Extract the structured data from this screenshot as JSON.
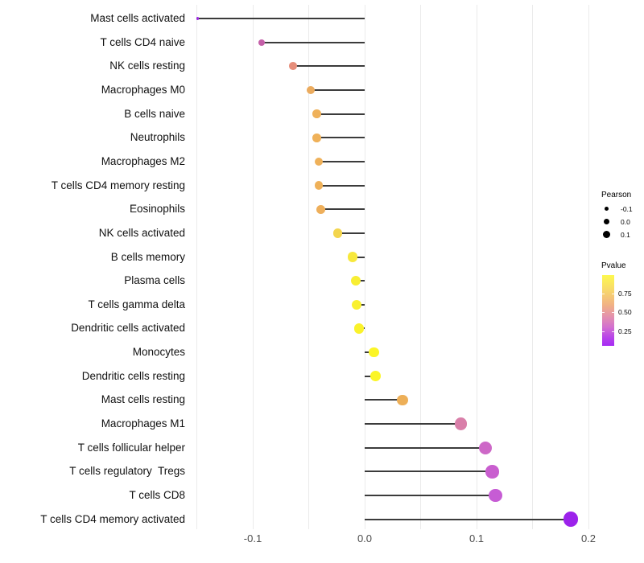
{
  "chart_data": {
    "type": "scatter",
    "variant": "lollipop",
    "orientation": "horizontal",
    "title": "",
    "xlabel": "",
    "ylabel": "",
    "grid": "vertical-only",
    "x_axis": {
      "range": [
        -0.158,
        0.212
      ],
      "major_ticks": [
        {
          "value": -0.1,
          "label": "-0.1"
        },
        {
          "value": 0.0,
          "label": "0.0"
        },
        {
          "value": 0.1,
          "label": "0.1"
        },
        {
          "value": 0.2,
          "label": "0.2"
        }
      ],
      "minor_ticks": [
        -0.15,
        -0.05,
        0.05,
        0.15
      ]
    },
    "points": [
      {
        "label": "Mast cells activated",
        "pearson": -0.149,
        "pvalue_approx": 0.08,
        "color": "#9C2BE0"
      },
      {
        "label": "T cells CD4 naive",
        "pearson": -0.092,
        "pvalue_approx": 0.37,
        "color": "#C45FA8"
      },
      {
        "label": "NK cells resting",
        "pearson": -0.064,
        "pvalue_approx": 0.52,
        "color": "#E68E7B"
      },
      {
        "label": "Macrophages M0",
        "pearson": -0.048,
        "pvalue_approx": 0.62,
        "color": "#EBAB5E"
      },
      {
        "label": "B cells naive",
        "pearson": -0.043,
        "pvalue_approx": 0.63,
        "color": "#EFB15A"
      },
      {
        "label": "Neutrophils",
        "pearson": -0.043,
        "pvalue_approx": 0.63,
        "color": "#EFB159"
      },
      {
        "label": "Macrophages M2",
        "pearson": -0.041,
        "pvalue_approx": 0.63,
        "color": "#EFB15A"
      },
      {
        "label": "T cells CD4 memory resting",
        "pearson": -0.041,
        "pvalue_approx": 0.64,
        "color": "#EFB159"
      },
      {
        "label": "Eosinophils",
        "pearson": -0.039,
        "pvalue_approx": 0.64,
        "color": "#EEAF5B"
      },
      {
        "label": "NK cells activated",
        "pearson": -0.024,
        "pvalue_approx": 0.78,
        "color": "#F3D54E"
      },
      {
        "label": "B cells memory",
        "pearson": -0.011,
        "pvalue_approx": 0.88,
        "color": "#F7E83C"
      },
      {
        "label": "Plasma cells",
        "pearson": -0.008,
        "pvalue_approx": 0.91,
        "color": "#F8EE33"
      },
      {
        "label": "T cells gamma delta",
        "pearson": -0.007,
        "pvalue_approx": 0.93,
        "color": "#F9F02E"
      },
      {
        "label": "Dendritic cells activated",
        "pearson": -0.005,
        "pvalue_approx": 0.95,
        "color": "#FAF22B"
      },
      {
        "label": "Monocytes",
        "pearson": 0.008,
        "pvalue_approx": 0.97,
        "color": "#FBF527"
      },
      {
        "label": "Dendritic cells resting",
        "pearson": 0.01,
        "pvalue_approx": 0.97,
        "color": "#FBF527"
      },
      {
        "label": "Mast cells resting",
        "pearson": 0.034,
        "pvalue_approx": 0.63,
        "color": "#EDAF58"
      },
      {
        "label": "Macrophages M1",
        "pearson": 0.086,
        "pvalue_approx": 0.42,
        "color": "#D97FA9"
      },
      {
        "label": "T cells follicular helper",
        "pearson": 0.108,
        "pvalue_approx": 0.3,
        "color": "#CD68C7"
      },
      {
        "label": "T cells regulatory  Tregs",
        "pearson": 0.114,
        "pvalue_approx": 0.28,
        "color": "#C95ECF"
      },
      {
        "label": "T cells CD8",
        "pearson": 0.117,
        "pvalue_approx": 0.27,
        "color": "#C65CD4"
      },
      {
        "label": "T cells CD4 memory activated",
        "pearson": 0.184,
        "pvalue_approx": 0.06,
        "color": "#9C22EB"
      }
    ],
    "legend_position": "right"
  },
  "legend": {
    "pearson": {
      "title": "Pearson",
      "items": [
        {
          "label": "-0.1"
        },
        {
          "label": "0.0"
        },
        {
          "label": "0.1"
        }
      ]
    },
    "pvalue": {
      "title": "Pvalue",
      "labels": [
        "0.75",
        "0.50",
        "0.25"
      ],
      "gradient_top_color": "#FDF94E",
      "gradient_bottom_color": "#A62BF3"
    }
  },
  "colors": {
    "stem": "#3b3b3b",
    "gridline": "#ebebeb",
    "axis_text": "#4d4d4d",
    "label_text": "#111111",
    "background": "#ffffff"
  }
}
